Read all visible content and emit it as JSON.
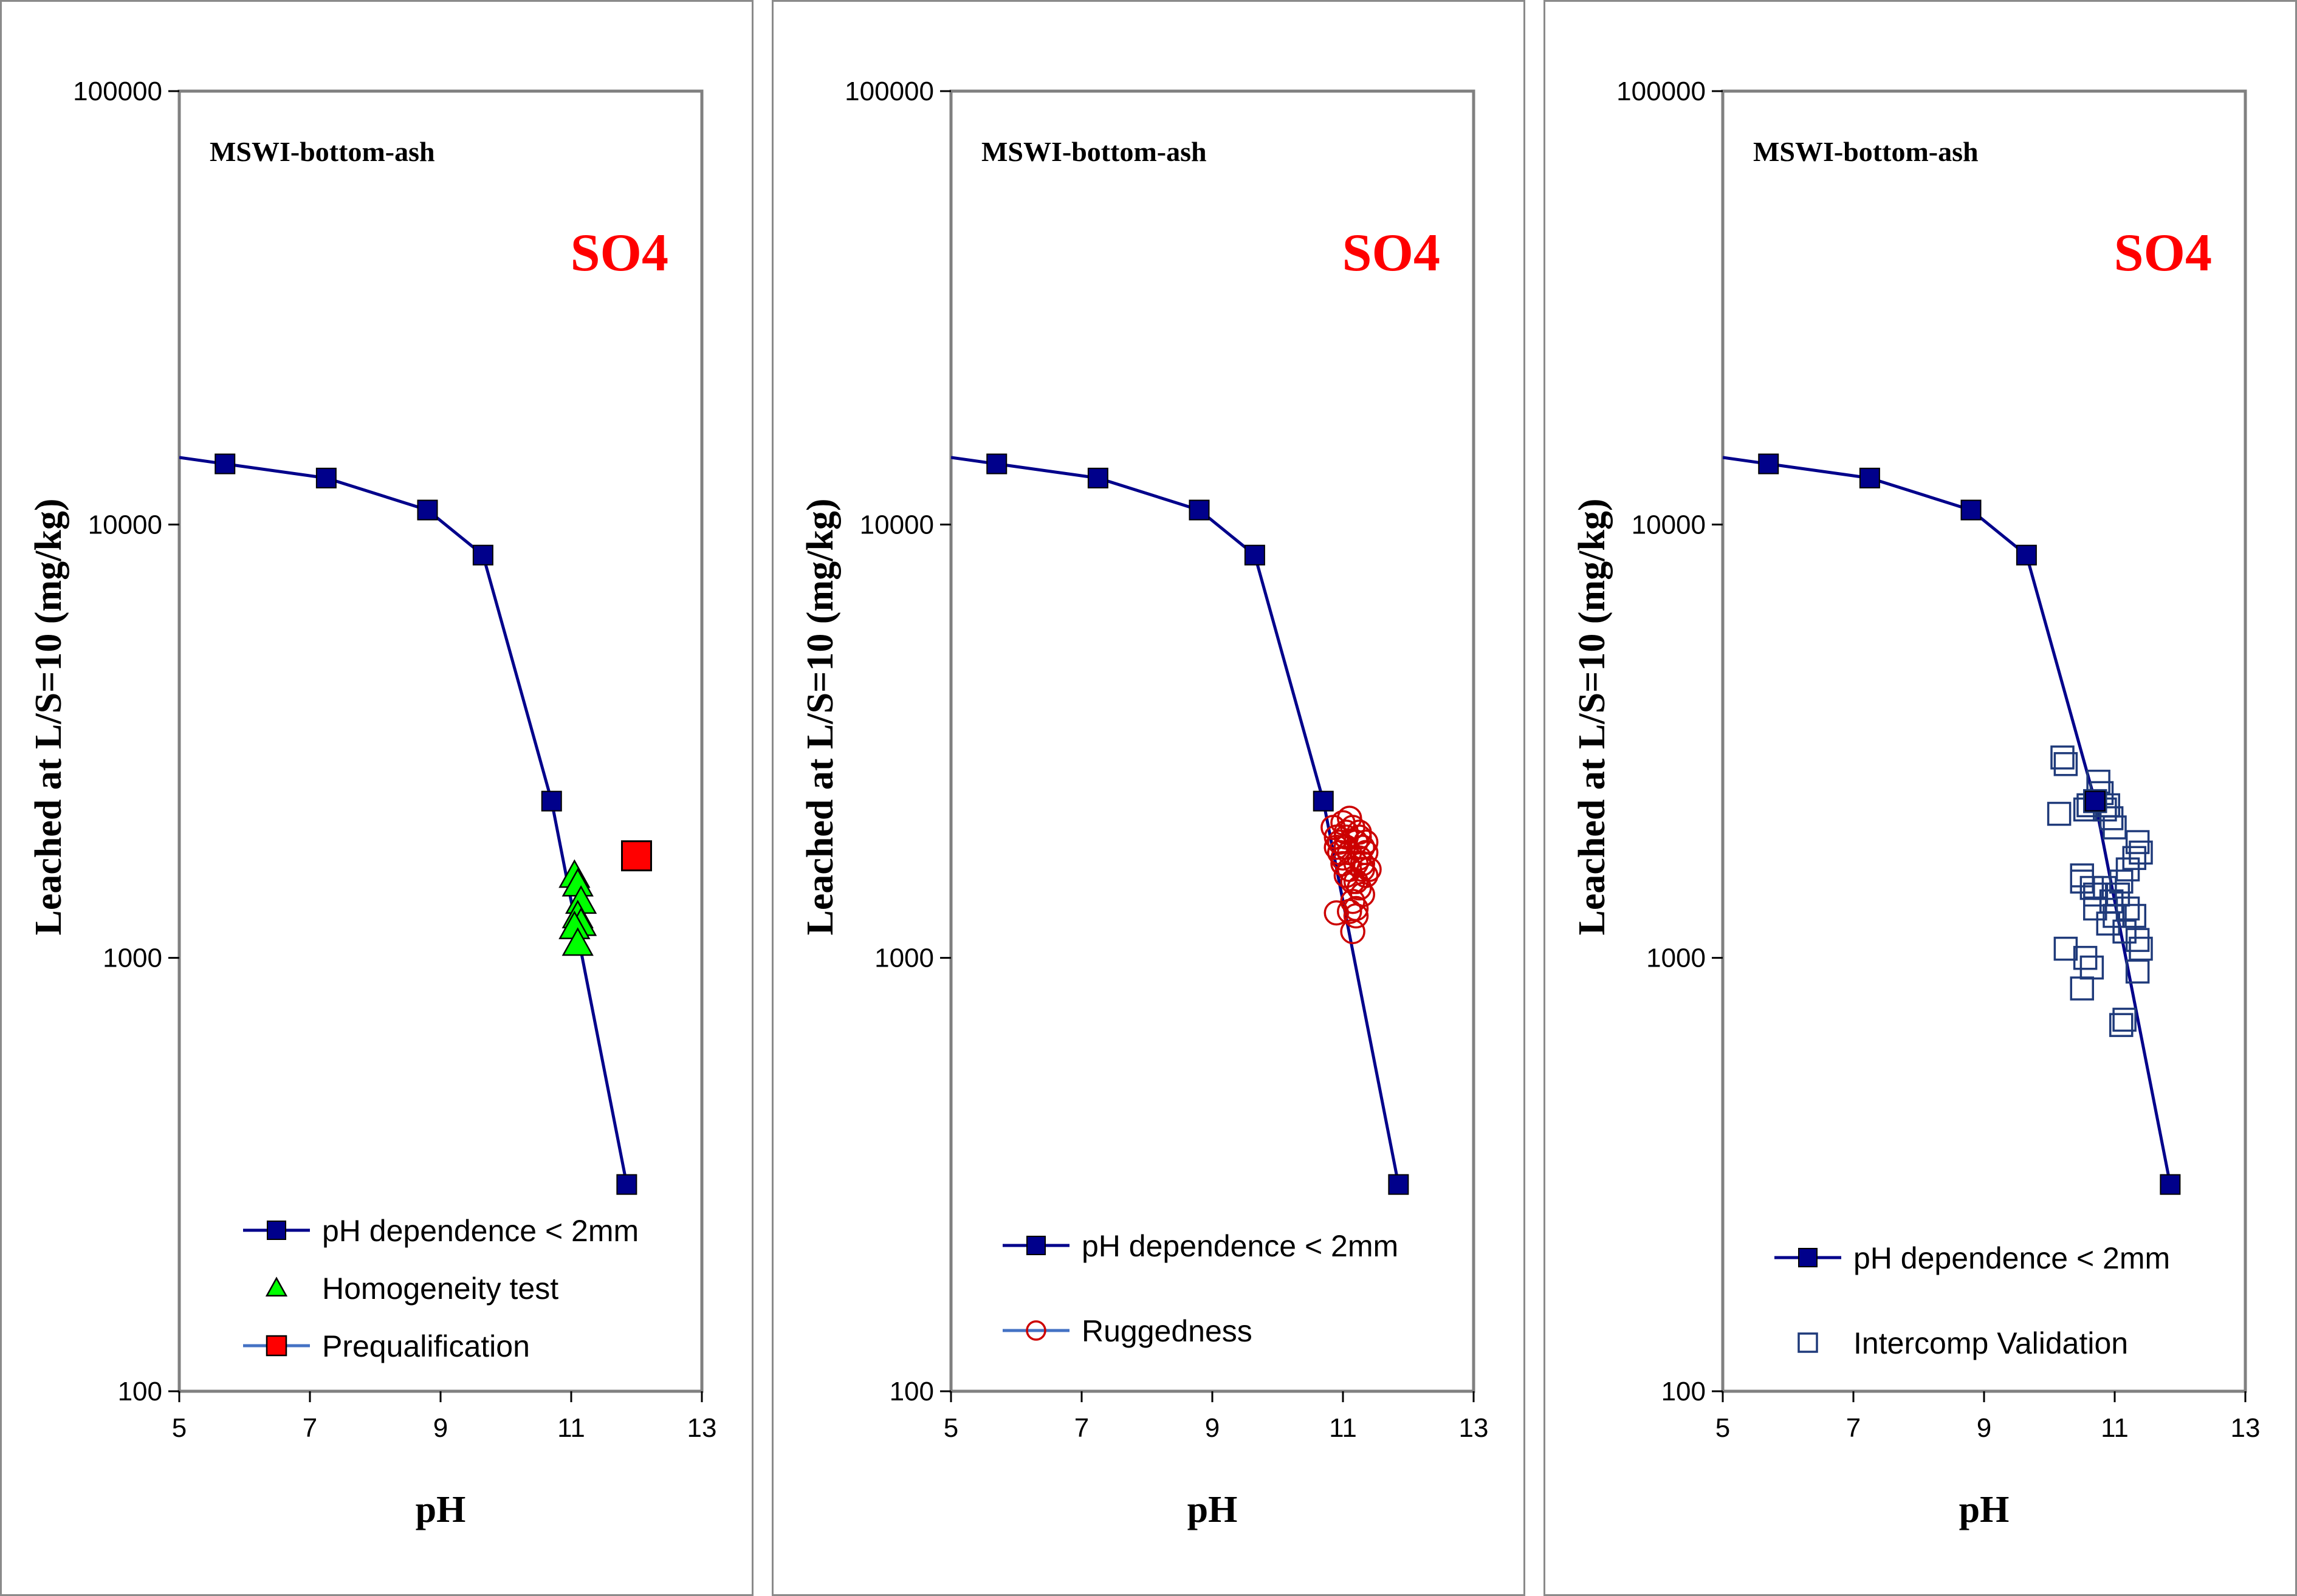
{
  "colors": {
    "main_series": "#00008B",
    "homogeneity": "#00FF00",
    "prequalification": "#FF0000",
    "ruggedness": "#CC0000",
    "intercomp": "#1F3A7A",
    "legend_line": "#4472C4",
    "species_text": "#FF0000"
  },
  "chart_data": [
    {
      "type": "scatter",
      "sample_label": "MSWI-bottom-ash",
      "species_label": "SO4",
      "xlabel": "pH",
      "ylabel": "Leached at L/S=10 (mg/kg)",
      "xlim": [
        5,
        13
      ],
      "ylim": [
        100,
        100000
      ],
      "yscale": "log",
      "x_ticks": [
        "5",
        "7",
        "9",
        "11",
        "13"
      ],
      "y_ticks": [
        "100",
        "1000",
        "10000",
        "100000"
      ],
      "grid": false,
      "legend_position": "bottom-center",
      "series": [
        {
          "name": "pH dependence < 2mm",
          "style": "line-square",
          "x": [
            5.7,
            7.25,
            8.8,
            9.65,
            10.7,
            11.85
          ],
          "y": [
            13800,
            12800,
            10800,
            8500,
            2300,
            300
          ]
        },
        {
          "name": "Homogeneity test",
          "style": "triangle",
          "x": [
            11.05,
            11.1,
            11.15,
            11.1,
            11.15,
            11.05,
            11.1
          ],
          "y": [
            1550,
            1480,
            1350,
            1250,
            1200,
            1180,
            1080
          ]
        },
        {
          "name": "Prequalification",
          "style": "filled-square",
          "x": [
            12.0
          ],
          "y": [
            1720
          ]
        }
      ]
    },
    {
      "type": "scatter",
      "sample_label": "MSWI-bottom-ash",
      "species_label": "SO4",
      "xlabel": "pH",
      "ylabel": "Leached at L/S=10 (mg/kg)",
      "xlim": [
        5,
        13
      ],
      "ylim": [
        100,
        100000
      ],
      "yscale": "log",
      "x_ticks": [
        "5",
        "7",
        "9",
        "11",
        "13"
      ],
      "y_ticks": [
        "100",
        "1000",
        "10000",
        "100000"
      ],
      "grid": false,
      "legend_position": "bottom-center",
      "series": [
        {
          "name": "pH dependence < 2mm",
          "style": "line-square",
          "x": [
            5.7,
            7.25,
            8.8,
            9.65,
            10.7,
            11.85
          ],
          "y": [
            13800,
            12800,
            10800,
            8500,
            2300,
            300
          ]
        },
        {
          "name": "Ruggedness",
          "style": "open-circle",
          "x": [
            10.85,
            10.9,
            10.95,
            11.0,
            11.05,
            11.1,
            11.15,
            11.2,
            11.25,
            11.3,
            11.35,
            11.4,
            10.9,
            11.0,
            11.1,
            11.2,
            11.3,
            11.05,
            11.15,
            11.25,
            11.35,
            11.0,
            11.1,
            11.2,
            11.3,
            11.15,
            10.95,
            11.05,
            11.25,
            11.2,
            11.1,
            10.9,
            11.3,
            11.35,
            11.15,
            11.2,
            11.05,
            11.25
          ],
          "y": [
            2000,
            1900,
            1850,
            2050,
            1950,
            2100,
            2000,
            1850,
            1900,
            1800,
            1750,
            1600,
            1800,
            1700,
            1750,
            1650,
            1600,
            1550,
            1500,
            1450,
            1550,
            1650,
            1600,
            1500,
            1400,
            1350,
            1750,
            1800,
            1700,
            1300,
            1280,
            1270,
            1650,
            1850,
            1150,
            1250,
            1900,
            1950
          ]
        }
      ]
    },
    {
      "type": "scatter",
      "sample_label": "MSWI-bottom-ash",
      "species_label": "SO4",
      "xlabel": "pH",
      "ylabel": "Leached at L/S=10 (mg/kg)",
      "xlim": [
        5,
        13
      ],
      "ylim": [
        100,
        100000
      ],
      "yscale": "log",
      "x_ticks": [
        "5",
        "7",
        "9",
        "11",
        "13"
      ],
      "y_ticks": [
        "100",
        "1000",
        "10000",
        "100000"
      ],
      "grid": false,
      "legend_position": "bottom-center",
      "series": [
        {
          "name": "pH dependence < 2mm",
          "style": "line-square",
          "x": [
            5.7,
            7.25,
            8.8,
            9.65,
            10.7,
            11.85
          ],
          "y": [
            13800,
            12800,
            10800,
            8500,
            2300,
            300
          ]
        },
        {
          "name": "Intercomp Validation",
          "style": "open-square",
          "x": [
            10.2,
            10.25,
            10.15,
            10.55,
            10.6,
            10.7,
            10.75,
            10.8,
            10.85,
            10.9,
            10.95,
            11.0,
            11.35,
            11.4,
            11.3,
            10.5,
            10.65,
            10.7,
            10.85,
            10.95,
            11.05,
            11.1,
            11.2,
            11.3,
            11.35,
            10.5,
            10.7,
            10.9,
            11.0,
            11.15,
            10.25,
            10.55,
            10.65,
            11.4,
            10.5,
            11.1,
            11.15,
            11.35,
            10.95,
            11.2
          ],
          "y": [
            2900,
            2800,
            2150,
            2200,
            2250,
            2300,
            2550,
            2400,
            2200,
            2250,
            2100,
            2000,
            1850,
            1750,
            1700,
            1500,
            1450,
            1400,
            1450,
            1350,
            1400,
            1500,
            1300,
            1250,
            1100,
            1550,
            1300,
            1200,
            1250,
            1150,
            1050,
            1000,
            950,
            1050,
            850,
            700,
            720,
            930,
            1350,
            1600
          ]
        }
      ]
    }
  ]
}
